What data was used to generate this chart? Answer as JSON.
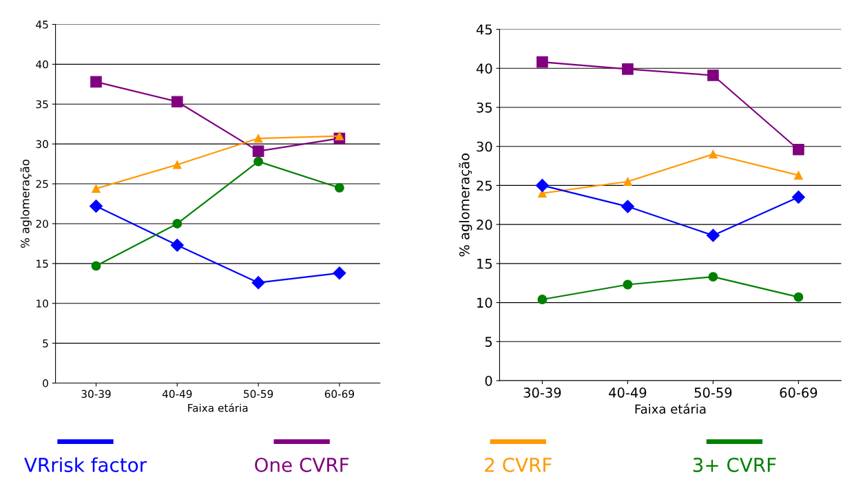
{
  "chart_data": [
    {
      "type": "line",
      "xlabel": "Faixa etária",
      "ylabel": "% aglomeração",
      "categories": [
        "30-39",
        "40-49",
        "50-59",
        "60-69"
      ],
      "ylim": [
        0,
        45
      ],
      "yticks": [
        0,
        5,
        10,
        15,
        20,
        25,
        30,
        35,
        40,
        45
      ],
      "grid": "y",
      "legend": "bottom",
      "series": [
        {
          "name": "VRrisk factor",
          "color": "#0000ff",
          "marker": "diamond",
          "values": [
            22.2,
            17.3,
            12.6,
            13.8
          ]
        },
        {
          "name": "One CVRF",
          "color": "#800080",
          "marker": "square",
          "values": [
            37.8,
            35.3,
            29.1,
            30.7
          ]
        },
        {
          "name": "2 CVRF",
          "color": "#ff9900",
          "marker": "triangle",
          "values": [
            24.4,
            27.4,
            30.7,
            31.0
          ]
        },
        {
          "name": "3+ CVRF",
          "color": "#008000",
          "marker": "circle",
          "values": [
            14.7,
            20.0,
            27.8,
            24.5
          ]
        }
      ]
    },
    {
      "type": "line",
      "xlabel": "Faixa etária",
      "ylabel": "% aglomeração",
      "categories": [
        "30-39",
        "40-49",
        "50-59",
        "60-69"
      ],
      "ylim": [
        0,
        45
      ],
      "yticks": [
        0,
        5,
        10,
        15,
        20,
        25,
        30,
        35,
        40,
        45
      ],
      "grid": "y",
      "series": [
        {
          "color": "#800080",
          "marker": "square",
          "values": [
            40.8,
            39.9,
            39.1,
            29.6
          ]
        },
        {
          "color": "#ff9900",
          "marker": "triangle",
          "values": [
            24.0,
            25.5,
            29.0,
            26.3
          ]
        },
        {
          "color": "#0000ff",
          "marker": "diamond",
          "values": [
            25.0,
            22.3,
            18.6,
            23.5
          ]
        },
        {
          "color": "#008000",
          "marker": "circle",
          "values": [
            10.4,
            12.3,
            13.3,
            10.7
          ]
        }
      ]
    }
  ]
}
